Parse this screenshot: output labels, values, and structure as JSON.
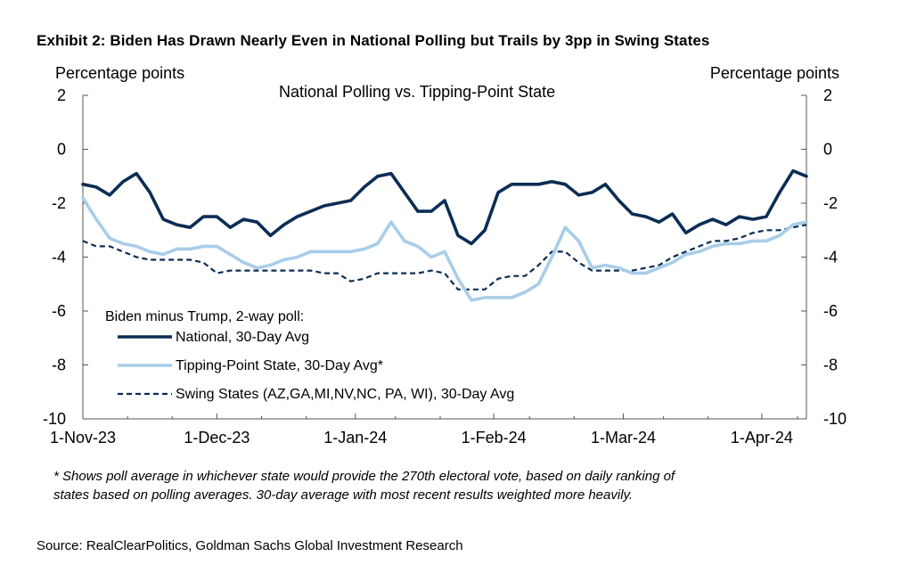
{
  "title": "Exhibit 2: Biden Has Drawn Nearly Even in National Polling but Trails by 3pp in Swing States",
  "unit_left": "Percentage points",
  "unit_right": "Percentage points",
  "subtitle": "National Polling vs. Tipping-Point State",
  "legend_title": "Biden minus Trump, 2-way poll:",
  "footnote_line1": "* Shows poll average in whichever state would provide the 270th electoral vote, based on daily ranking of",
  "footnote_line2": "states based on polling averages. 30-day average with most recent results weighted more heavily.",
  "source": "Source: RealClearPolitics, Goldman Sachs Global Investment Research",
  "chart_data": {
    "type": "line",
    "title": "National Polling vs. Tipping-Point State",
    "xlabel": "",
    "ylabel": "Percentage points",
    "ylabel_right": "Percentage points",
    "ylim": [
      -10,
      2
    ],
    "yticks": [
      2,
      0,
      -2,
      -4,
      -6,
      -8,
      -10
    ],
    "xlim_days": [
      0,
      162
    ],
    "xticks": [
      {
        "label": "1-Nov-23",
        "day": 0
      },
      {
        "label": "1-Dec-23",
        "day": 30
      },
      {
        "label": "1-Jan-24",
        "day": 61
      },
      {
        "label": "1-Feb-24",
        "day": 92
      },
      {
        "label": "1-Mar-24",
        "day": 121
      },
      {
        "label": "1-Apr-24",
        "day": 152
      }
    ],
    "legend_placement": "bottom-left",
    "grid": false,
    "x_days": [
      0,
      3,
      6,
      9,
      12,
      15,
      18,
      21,
      24,
      27,
      30,
      33,
      36,
      39,
      42,
      45,
      48,
      51,
      54,
      57,
      60,
      63,
      66,
      69,
      72,
      75,
      78,
      81,
      84,
      87,
      90,
      93,
      96,
      99,
      102,
      105,
      108,
      111,
      114,
      117,
      120,
      123,
      126,
      129,
      132,
      135,
      138,
      141,
      144,
      147,
      150,
      153,
      156,
      159,
      162
    ],
    "series": [
      {
        "name": "National, 30-Day Avg",
        "color": "#0b2d55",
        "style": "solid",
        "values": [
          -1.3,
          -1.4,
          -1.7,
          -1.2,
          -0.9,
          -1.6,
          -2.6,
          -2.8,
          -2.9,
          -2.5,
          -2.5,
          -2.9,
          -2.6,
          -2.7,
          -3.2,
          -2.8,
          -2.5,
          -2.3,
          -2.1,
          -2.0,
          -1.9,
          -1.4,
          -1.0,
          -0.9,
          -1.6,
          -2.3,
          -2.3,
          -1.9,
          -3.2,
          -3.5,
          -3.0,
          -1.6,
          -1.3,
          -1.3,
          -1.3,
          -1.2,
          -1.3,
          -1.7,
          -1.6,
          -1.3,
          -1.9,
          -2.4,
          -2.5,
          -2.7,
          -2.4,
          -3.1,
          -2.8,
          -2.6,
          -2.8,
          -2.5,
          -2.6,
          -2.5,
          -1.6,
          -0.8,
          -1.0
        ]
      },
      {
        "name": "Tipping-Point State, 30-Day Avg*",
        "color": "#a8cdea",
        "style": "solid",
        "values": [
          -1.8,
          -2.6,
          -3.3,
          -3.5,
          -3.6,
          -3.8,
          -3.9,
          -3.7,
          -3.7,
          -3.6,
          -3.6,
          -3.9,
          -4.2,
          -4.4,
          -4.3,
          -4.1,
          -4.0,
          -3.8,
          -3.8,
          -3.8,
          -3.8,
          -3.7,
          -3.5,
          -2.7,
          -3.4,
          -3.6,
          -4.0,
          -3.8,
          -4.8,
          -5.6,
          -5.5,
          -5.5,
          -5.5,
          -5.3,
          -5.0,
          -4.0,
          -2.9,
          -3.4,
          -4.4,
          -4.3,
          -4.4,
          -4.6,
          -4.6,
          -4.4,
          -4.2,
          -3.9,
          -3.8,
          -3.6,
          -3.5,
          -3.5,
          -3.4,
          -3.4,
          -3.2,
          -2.8,
          -2.7
        ]
      },
      {
        "name": "Swing States (AZ,GA,MI,NV,NC, PA, WI), 30-Day Avg",
        "color": "#0b2d55",
        "style": "dashed",
        "values": [
          -3.4,
          -3.6,
          -3.6,
          -3.8,
          -4.0,
          -4.1,
          -4.1,
          -4.1,
          -4.1,
          -4.2,
          -4.6,
          -4.5,
          -4.5,
          -4.5,
          -4.5,
          -4.5,
          -4.5,
          -4.5,
          -4.6,
          -4.6,
          -4.9,
          -4.8,
          -4.6,
          -4.6,
          -4.6,
          -4.6,
          -4.5,
          -4.6,
          -5.2,
          -5.2,
          -5.2,
          -4.8,
          -4.7,
          -4.7,
          -4.3,
          -3.8,
          -3.8,
          -4.2,
          -4.5,
          -4.5,
          -4.5,
          -4.5,
          -4.4,
          -4.3,
          -4.0,
          -3.8,
          -3.6,
          -3.4,
          -3.4,
          -3.3,
          -3.1,
          -3.0,
          -3.0,
          -2.9,
          -2.8
        ]
      }
    ]
  }
}
